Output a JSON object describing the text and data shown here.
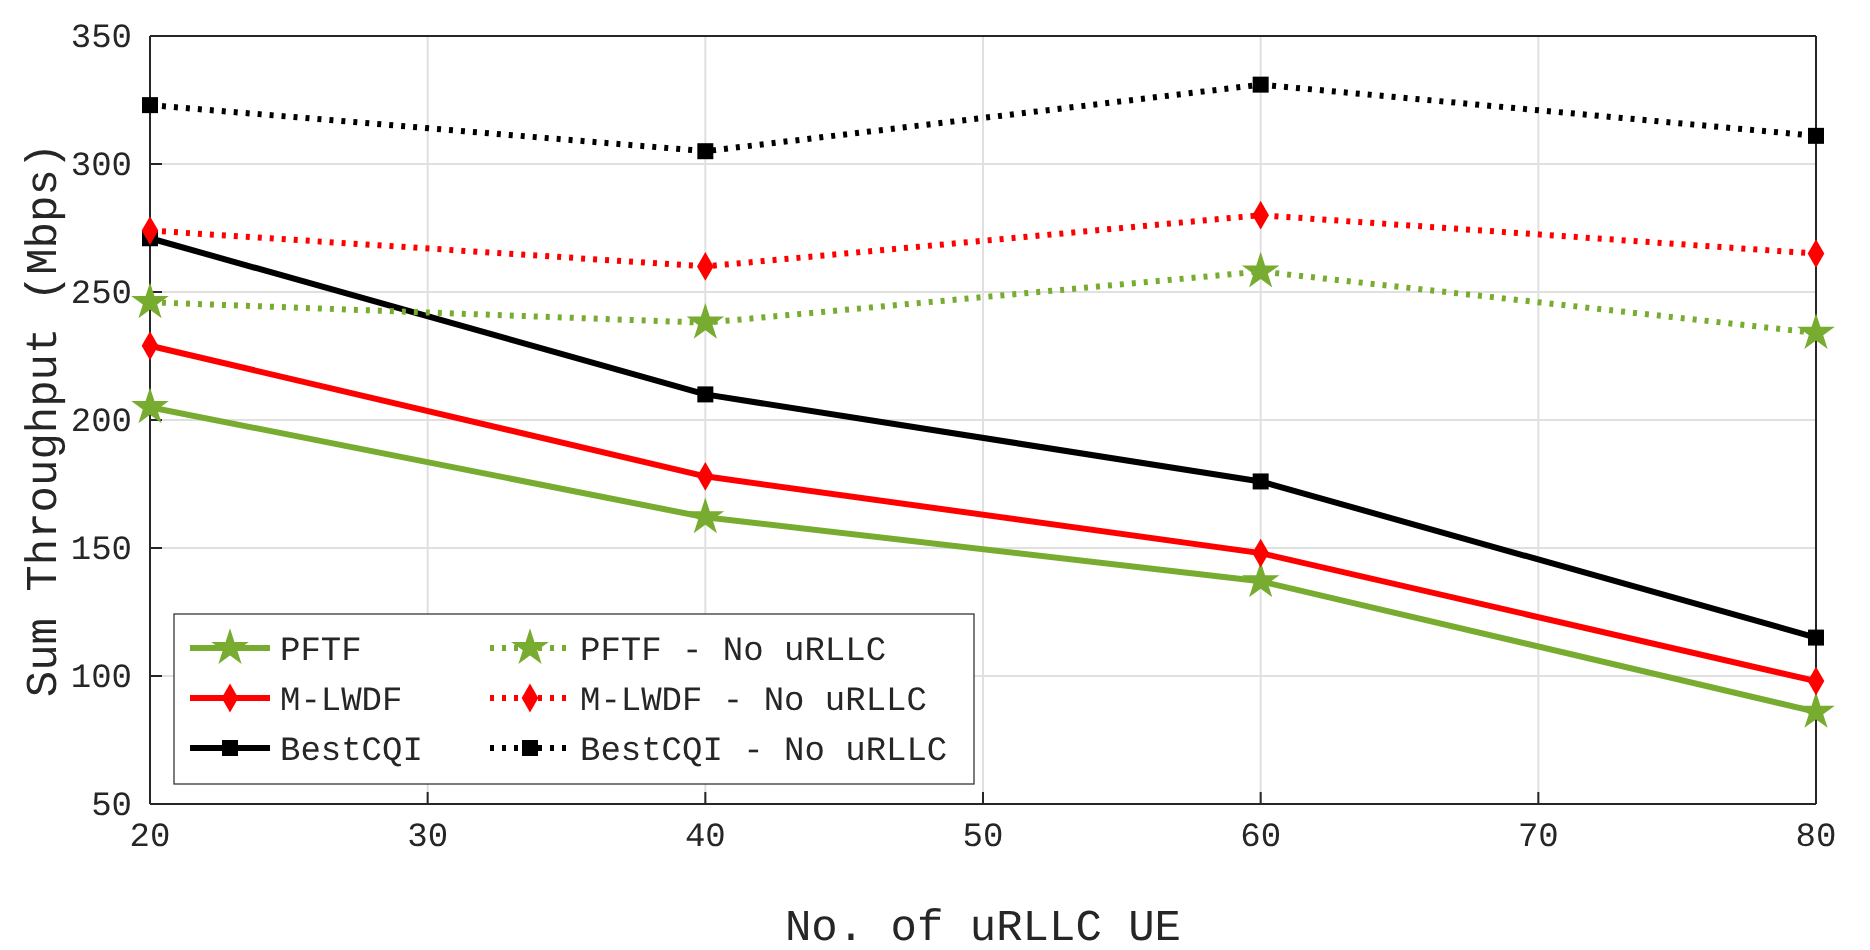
{
  "chart_data": {
    "type": "line",
    "xlabel": "No. of uRLLC UE",
    "ylabel": "Sum Throughput (Mbps)",
    "x": [
      20,
      40,
      60,
      80
    ],
    "xlim": [
      20,
      80
    ],
    "xticks": [
      20,
      30,
      40,
      50,
      60,
      70,
      80
    ],
    "ylim": [
      50,
      350
    ],
    "yticks": [
      50,
      100,
      150,
      200,
      250,
      300,
      350
    ],
    "grid": true,
    "legend": "bottom left",
    "series": [
      {
        "name": "PFTF",
        "color": "#77ac30",
        "marker": "star",
        "line_style": "solid",
        "values": [
          205,
          162,
          137,
          86
        ]
      },
      {
        "name": "M-LWDF",
        "color": "#ff0000",
        "marker": "diamond",
        "line_style": "solid",
        "values": [
          229,
          178,
          148,
          98
        ]
      },
      {
        "name": "BestCQI",
        "color": "#000000",
        "marker": "square",
        "line_style": "solid",
        "values": [
          271,
          210,
          176,
          115
        ]
      },
      {
        "name": "PFTF - No uRLLC",
        "color": "#77ac30",
        "marker": "star",
        "line_style": "dotted",
        "values": [
          246,
          238,
          258,
          234
        ]
      },
      {
        "name": "M-LWDF - No uRLLC",
        "color": "#ff0000",
        "marker": "diamond",
        "line_style": "dotted",
        "values": [
          274,
          260,
          280,
          265
        ]
      },
      {
        "name": "BestCQI - No uRLLC",
        "color": "#000000",
        "marker": "square",
        "line_style": "dotted",
        "values": [
          323,
          305,
          331,
          311
        ]
      }
    ]
  }
}
